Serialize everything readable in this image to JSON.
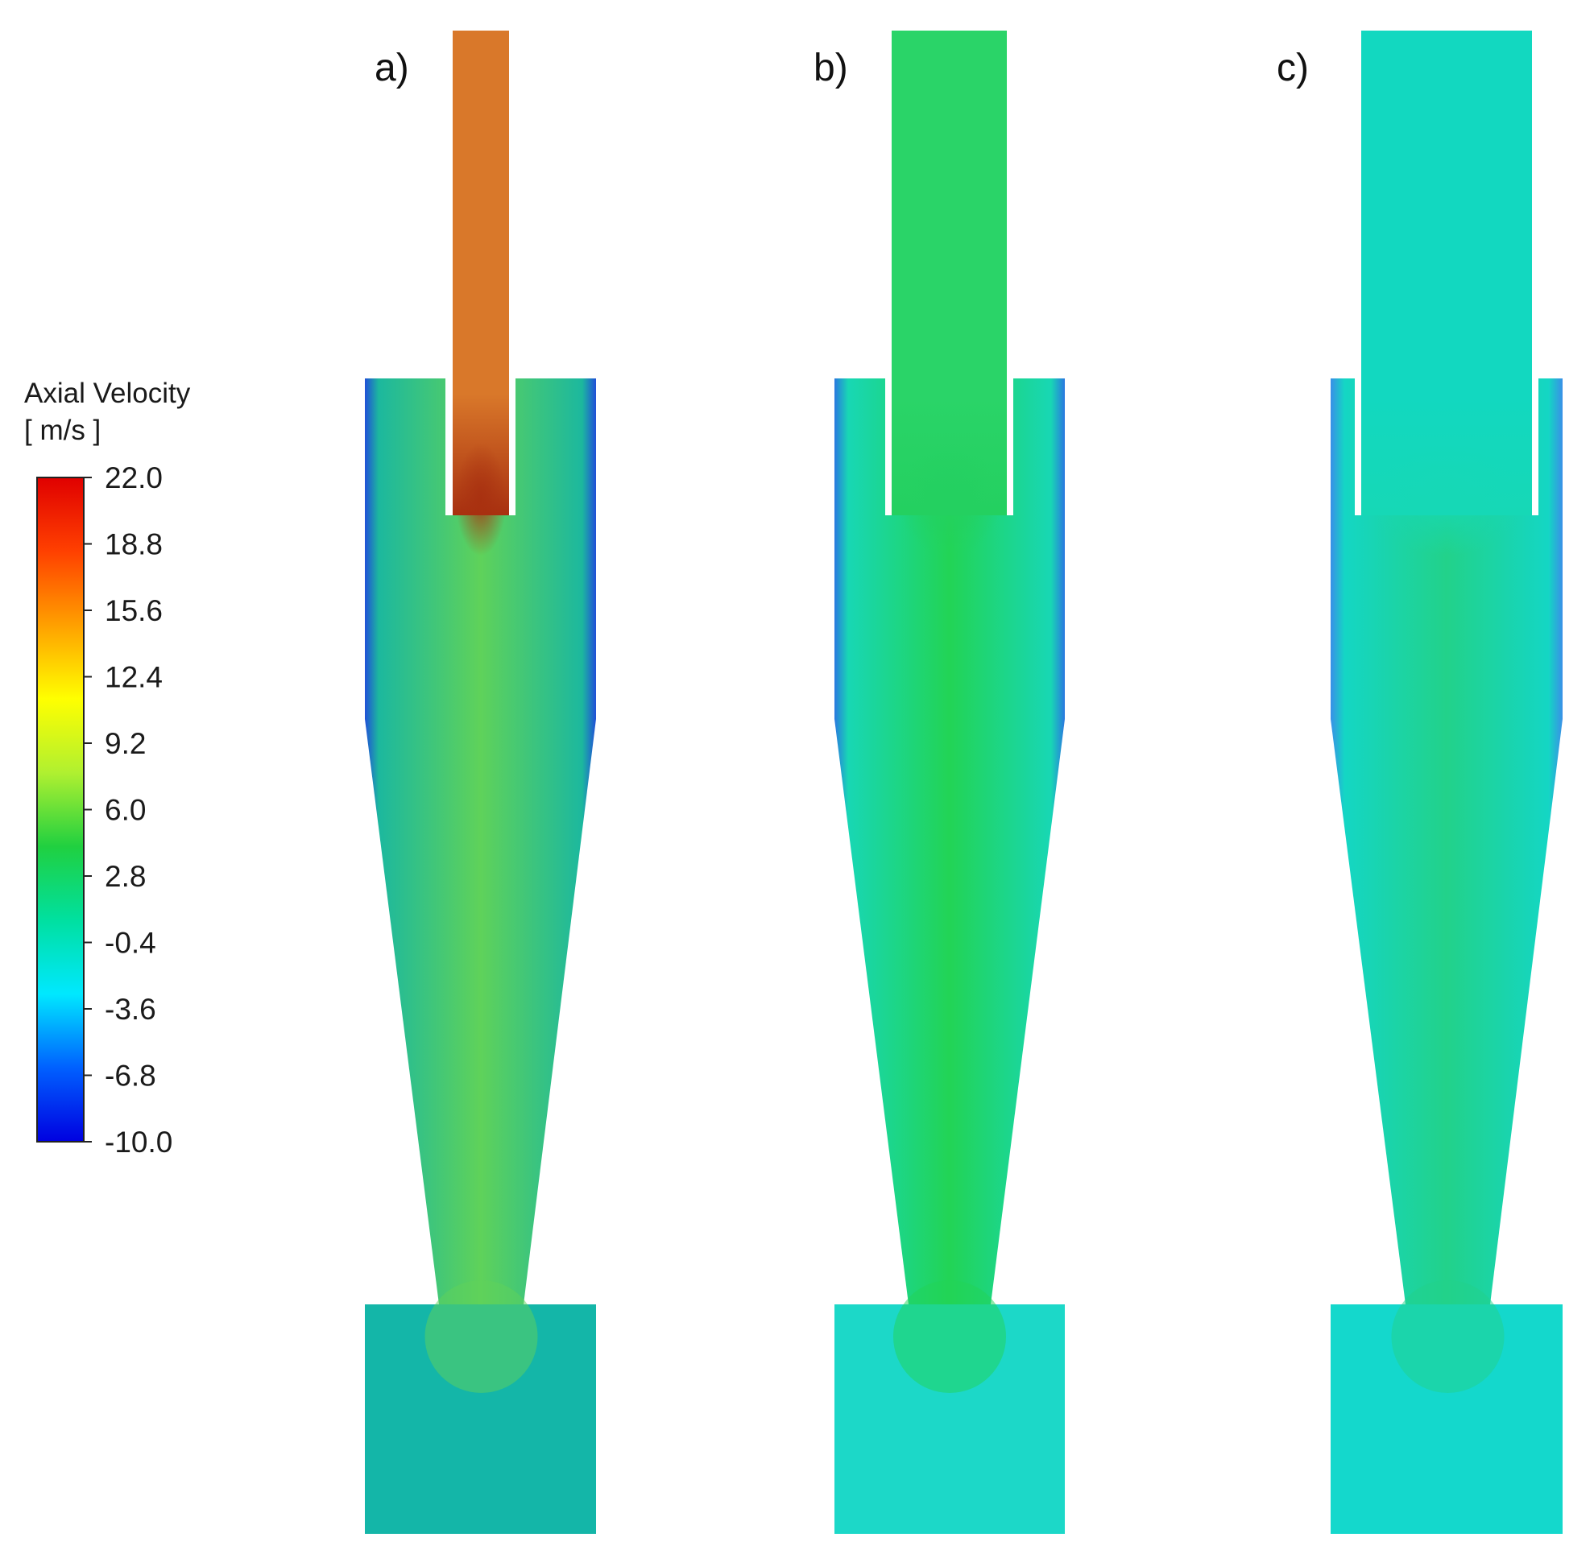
{
  "legend": {
    "title_line1": "Axial Velocity",
    "title_line2": "[ m/s ]",
    "ticks": [
      "22.0",
      "18.8",
      "15.6",
      "12.4",
      "9.2",
      "6.0",
      "2.8",
      "-0.4",
      "-3.6",
      "-6.8",
      "-10.0"
    ],
    "range": [
      -10.0,
      22.0
    ],
    "colors": [
      "#0000e0",
      "#0060ff",
      "#00e8ff",
      "#00e0a0",
      "#20d040",
      "#b0f030",
      "#ffff00",
      "#ffa000",
      "#ff4000",
      "#e00000"
    ]
  },
  "panels": [
    {
      "label": "a)",
      "colors": {
        "pipe": "#d9782a",
        "core": "#a83010",
        "body": "#1cb89e",
        "center": "#5fd25a",
        "edge": "#2050d8",
        "bin": "#14b6a8"
      }
    },
    {
      "label": "b)",
      "colors": {
        "pipe": "#2ad468",
        "core": "#24d060",
        "body": "#18d7b4",
        "center": "#22d455",
        "edge": "#2a78e0",
        "bin": "#1cd8c8"
      }
    },
    {
      "label": "c)",
      "colors": {
        "pipe": "#12d8c0",
        "core": "#16d8b6",
        "body": "#14d6c4",
        "center": "#22d28a",
        "edge": "#3a90e8",
        "bin": "#14d8cc"
      }
    }
  ]
}
